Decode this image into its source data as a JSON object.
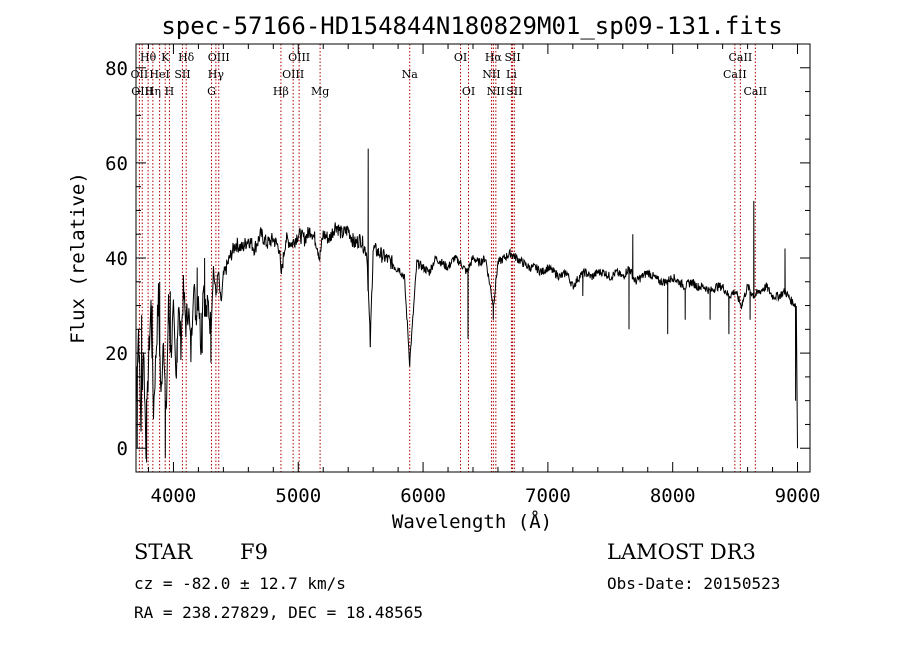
{
  "chart_data": {
    "type": "line",
    "title": "spec-57166-HD154844N180829M01_sp09-131.fits",
    "xlabel": "Wavelength (Å)",
    "ylabel": "Flux (relative)",
    "xlim": [
      3700,
      9100
    ],
    "ylim": [
      -5,
      85
    ],
    "xticks": [
      4000,
      5000,
      6000,
      7000,
      8000,
      9000
    ],
    "yticks": [
      0,
      20,
      40,
      60,
      80
    ],
    "grid": false,
    "series": [
      {
        "x": [
          3700,
          3720,
          3740,
          3760,
          3780,
          3800,
          3820,
          3840,
          3860,
          3880,
          3900,
          3920,
          3940,
          3960,
          3980,
          4000,
          4020,
          4040,
          4060,
          4080,
          4100,
          4120,
          4140,
          4160,
          4180,
          4200,
          4220,
          4240,
          4260,
          4280,
          4300,
          4320,
          4340,
          4360,
          4380,
          4400,
          4450,
          4500,
          4550,
          4600,
          4650,
          4700,
          4750,
          4800,
          4850,
          4861,
          4900,
          4950,
          5000,
          5050,
          5100,
          5150,
          5172,
          5200,
          5250,
          5300,
          5350,
          5400,
          5450,
          5500,
          5550,
          5577,
          5600,
          5650,
          5700,
          5750,
          5800,
          5850,
          5893,
          5950,
          6000,
          6050,
          6100,
          6150,
          6200,
          6250,
          6300,
          6350,
          6400,
          6450,
          6500,
          6563,
          6600,
          6650,
          6700,
          6750,
          6800,
          6850,
          6900,
          6950,
          7000,
          7050,
          7100,
          7150,
          7200,
          7250,
          7300,
          7350,
          7400,
          7450,
          7500,
          7550,
          7600,
          7650,
          7700,
          7750,
          7800,
          7850,
          7900,
          7950,
          8000,
          8050,
          8100,
          8150,
          8200,
          8250,
          8300,
          8350,
          8400,
          8450,
          8500,
          8550,
          8600,
          8650,
          8700,
          8750,
          8800,
          8850,
          8900,
          8950,
          8990,
          9000
        ],
        "y": [
          10,
          25,
          5,
          22,
          0,
          18,
          30,
          8,
          20,
          32,
          10,
          25,
          5,
          30,
          20,
          28,
          15,
          30,
          22,
          33,
          26,
          30,
          20,
          35,
          28,
          33,
          22,
          36,
          28,
          30,
          25,
          38,
          32,
          37,
          30,
          36,
          40,
          43,
          42,
          44,
          42,
          45,
          43,
          44,
          42,
          36,
          44,
          43,
          45,
          44,
          46,
          43,
          40,
          45,
          44,
          47,
          45,
          46,
          43,
          44,
          41,
          22,
          42,
          41,
          40,
          39,
          38,
          36,
          18,
          39,
          38,
          37,
          40,
          39,
          38,
          40,
          39,
          37,
          40,
          39,
          40,
          30,
          39,
          40,
          41,
          40,
          39,
          38,
          38,
          37,
          38,
          37,
          36,
          37,
          34,
          36,
          37,
          36,
          37,
          37,
          36,
          37,
          36,
          38,
          35,
          36,
          37,
          36,
          35,
          35,
          36,
          35,
          34,
          35,
          34,
          34,
          33,
          34,
          34,
          32,
          33,
          30,
          34,
          32,
          33,
          34,
          32,
          32,
          33,
          31,
          30,
          0
        ]
      }
    ],
    "spikes": [
      {
        "x": 3710,
        "y": 0
      },
      {
        "x": 3745,
        "y": 28
      },
      {
        "x": 3785,
        "y": -3
      },
      {
        "x": 3830,
        "y": 30
      },
      {
        "x": 3890,
        "y": 35
      },
      {
        "x": 3935,
        "y": -2
      },
      {
        "x": 3975,
        "y": 33
      },
      {
        "x": 4030,
        "y": 18
      },
      {
        "x": 4190,
        "y": 38
      },
      {
        "x": 4230,
        "y": 20
      },
      {
        "x": 4250,
        "y": 40
      },
      {
        "x": 4300,
        "y": 18
      },
      {
        "x": 5560,
        "y": 63
      },
      {
        "x": 5577,
        "y": 22
      },
      {
        "x": 5893,
        "y": 18
      },
      {
        "x": 6360,
        "y": 23
      },
      {
        "x": 6563,
        "y": 27
      },
      {
        "x": 7280,
        "y": 32
      },
      {
        "x": 7650,
        "y": 25
      },
      {
        "x": 7680,
        "y": 45
      },
      {
        "x": 7960,
        "y": 24
      },
      {
        "x": 8100,
        "y": 27
      },
      {
        "x": 8300,
        "y": 27
      },
      {
        "x": 8450,
        "y": 24
      },
      {
        "x": 8620,
        "y": 27
      },
      {
        "x": 8650,
        "y": 52
      },
      {
        "x": 8900,
        "y": 42
      },
      {
        "x": 8985,
        "y": 10
      }
    ],
    "lines": [
      {
        "x": 3727,
        "label": "OII",
        "row": 1
      },
      {
        "x": 3750,
        "label": "OIII",
        "row": 2
      },
      {
        "x": 3797,
        "label": "Hθ",
        "row": 0
      },
      {
        "x": 3835,
        "label": "Hη",
        "row": 2
      },
      {
        "x": 3889,
        "label": "HeI",
        "row": 1
      },
      {
        "x": 3934,
        "label": "K",
        "row": 0
      },
      {
        "x": 3968,
        "label": "H",
        "row": 2
      },
      {
        "x": 4072,
        "label": "SII",
        "row": 1
      },
      {
        "x": 4102,
        "label": "Hδ",
        "row": 0
      },
      {
        "x": 4305,
        "label": "G",
        "row": 2
      },
      {
        "x": 4340,
        "label": "Hγ",
        "row": 1
      },
      {
        "x": 4363,
        "label": "OIII",
        "row": 0
      },
      {
        "x": 4861,
        "label": "Hβ",
        "row": 2
      },
      {
        "x": 4959,
        "label": "OIII",
        "row": 1
      },
      {
        "x": 5007,
        "label": "OIII",
        "row": 0
      },
      {
        "x": 5175,
        "label": "Mg",
        "row": 2
      },
      {
        "x": 5893,
        "label": "Na",
        "row": 1
      },
      {
        "x": 6300,
        "label": "OI",
        "row": 0
      },
      {
        "x": 6364,
        "label": "OI",
        "row": 2
      },
      {
        "x": 6548,
        "label": "NII",
        "row": 1
      },
      {
        "x": 6563,
        "label": "Hα",
        "row": 0
      },
      {
        "x": 6583,
        "label": "NII",
        "row": 2
      },
      {
        "x": 6708,
        "label": "Li",
        "row": 1
      },
      {
        "x": 6717,
        "label": "SII",
        "row": 0
      },
      {
        "x": 6731,
        "label": "SII",
        "row": 2
      },
      {
        "x": 8498,
        "label": "CaII",
        "row": 1
      },
      {
        "x": 8542,
        "label": "CaII",
        "row": 0
      },
      {
        "x": 8662,
        "label": "CaII",
        "row": 2
      }
    ]
  },
  "info": {
    "class": "STAR",
    "subclass": "F9",
    "survey": "LAMOST DR3",
    "cz": "cz = -82.0 ± 12.7 km/s",
    "obs_date": "Obs-Date: 20150523",
    "coords": "RA = 238.27829, DEC =  18.48565"
  }
}
